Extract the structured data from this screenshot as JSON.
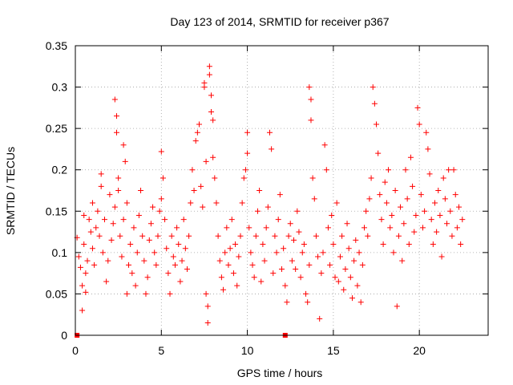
{
  "chart_data": {
    "type": "scatter",
    "title": "Day 123 of 2014, SRMTID for receiver p367",
    "xlabel": "GPS time / hours",
    "ylabel": "SRMTID / TECUs",
    "xlim": [
      0,
      24
    ],
    "ylim": [
      0,
      0.35
    ],
    "xticks": [
      0,
      5,
      10,
      15,
      20
    ],
    "xtick_labels": [
      "0",
      "5",
      "10",
      "15",
      "20"
    ],
    "yticks": [
      0,
      0.05,
      0.1,
      0.15,
      0.2,
      0.25,
      0.3,
      0.35
    ],
    "ytick_labels": [
      "0",
      "0.05",
      "0.1",
      "0.15",
      "0.2",
      "0.25",
      "0.3",
      "0.35"
    ],
    "grid": true,
    "marker": "+",
    "color": "#ff0000",
    "zero_markers": [
      {
        "x": 0.1,
        "y": 0
      },
      {
        "x": 12.2,
        "y": 0
      }
    ],
    "series": [
      {
        "name": "SRMTID",
        "points": [
          [
            0.1,
            0.118
          ],
          [
            0.2,
            0.095
          ],
          [
            0.3,
            0.082
          ],
          [
            0.4,
            0.06
          ],
          [
            0.4,
            0.03
          ],
          [
            0.5,
            0.145
          ],
          [
            0.5,
            0.11
          ],
          [
            0.6,
            0.075
          ],
          [
            0.6,
            0.052
          ],
          [
            0.7,
            0.09
          ],
          [
            0.8,
            0.14
          ],
          [
            0.9,
            0.125
          ],
          [
            1.0,
            0.105
          ],
          [
            1.0,
            0.16
          ],
          [
            1.1,
            0.085
          ],
          [
            1.2,
            0.13
          ],
          [
            1.3,
            0.15
          ],
          [
            1.4,
            0.12
          ],
          [
            1.5,
            0.18
          ],
          [
            1.5,
            0.195
          ],
          [
            1.6,
            0.1
          ],
          [
            1.7,
            0.14
          ],
          [
            1.8,
            0.065
          ],
          [
            1.9,
            0.09
          ],
          [
            2.0,
            0.17
          ],
          [
            2.1,
            0.115
          ],
          [
            2.2,
            0.135
          ],
          [
            2.3,
            0.155
          ],
          [
            2.3,
            0.285
          ],
          [
            2.4,
            0.265
          ],
          [
            2.4,
            0.245
          ],
          [
            2.5,
            0.19
          ],
          [
            2.5,
            0.175
          ],
          [
            2.6,
            0.12
          ],
          [
            2.7,
            0.095
          ],
          [
            2.8,
            0.14
          ],
          [
            2.8,
            0.23
          ],
          [
            2.9,
            0.21
          ],
          [
            3.0,
            0.16
          ],
          [
            3.0,
            0.05
          ],
          [
            3.1,
            0.085
          ],
          [
            3.2,
            0.11
          ],
          [
            3.3,
            0.075
          ],
          [
            3.4,
            0.13
          ],
          [
            3.5,
            0.06
          ],
          [
            3.6,
            0.1
          ],
          [
            3.7,
            0.145
          ],
          [
            3.8,
            0.175
          ],
          [
            3.9,
            0.12
          ],
          [
            4.0,
            0.09
          ],
          [
            4.1,
            0.05
          ],
          [
            4.2,
            0.07
          ],
          [
            4.3,
            0.115
          ],
          [
            4.4,
            0.135
          ],
          [
            4.5,
            0.155
          ],
          [
            4.6,
            0.1
          ],
          [
            4.7,
            0.085
          ],
          [
            4.8,
            0.12
          ],
          [
            4.9,
            0.15
          ],
          [
            5.0,
            0.165
          ],
          [
            5.0,
            0.222
          ],
          [
            5.1,
            0.19
          ],
          [
            5.2,
            0.14
          ],
          [
            5.3,
            0.105
          ],
          [
            5.4,
            0.075
          ],
          [
            5.5,
            0.05
          ],
          [
            5.6,
            0.12
          ],
          [
            5.7,
            0.095
          ],
          [
            5.8,
            0.085
          ],
          [
            5.9,
            0.13
          ],
          [
            6.0,
            0.11
          ],
          [
            6.1,
            0.065
          ],
          [
            6.2,
            0.09
          ],
          [
            6.3,
            0.14
          ],
          [
            6.4,
            0.105
          ],
          [
            6.5,
            0.08
          ],
          [
            6.6,
            0.12
          ],
          [
            6.7,
            0.16
          ],
          [
            6.8,
            0.2
          ],
          [
            6.9,
            0.175
          ],
          [
            7.0,
            0.235
          ],
          [
            7.1,
            0.245
          ],
          [
            7.2,
            0.255
          ],
          [
            7.3,
            0.18
          ],
          [
            7.4,
            0.155
          ],
          [
            7.5,
            0.305
          ],
          [
            7.5,
            0.3
          ],
          [
            7.6,
            0.21
          ],
          [
            7.6,
            0.05
          ],
          [
            7.7,
            0.035
          ],
          [
            7.7,
            0.015
          ],
          [
            7.8,
            0.325
          ],
          [
            7.8,
            0.315
          ],
          [
            7.9,
            0.29
          ],
          [
            7.9,
            0.27
          ],
          [
            8.0,
            0.26
          ],
          [
            8.0,
            0.215
          ],
          [
            8.1,
            0.19
          ],
          [
            8.2,
            0.16
          ],
          [
            8.3,
            0.12
          ],
          [
            8.4,
            0.09
          ],
          [
            8.5,
            0.07
          ],
          [
            8.6,
            0.055
          ],
          [
            8.7,
            0.1
          ],
          [
            8.8,
            0.13
          ],
          [
            8.9,
            0.085
          ],
          [
            9.0,
            0.105
          ],
          [
            9.1,
            0.14
          ],
          [
            9.2,
            0.075
          ],
          [
            9.3,
            0.11
          ],
          [
            9.4,
            0.06
          ],
          [
            9.5,
            0.095
          ],
          [
            9.6,
            0.12
          ],
          [
            9.7,
            0.16
          ],
          [
            9.8,
            0.19
          ],
          [
            9.9,
            0.2
          ],
          [
            10.0,
            0.245
          ],
          [
            10.0,
            0.22
          ],
          [
            10.1,
            0.13
          ],
          [
            10.2,
            0.1
          ],
          [
            10.3,
            0.085
          ],
          [
            10.4,
            0.07
          ],
          [
            10.5,
            0.12
          ],
          [
            10.6,
            0.15
          ],
          [
            10.7,
            0.175
          ],
          [
            10.8,
            0.065
          ],
          [
            10.9,
            0.11
          ],
          [
            11.0,
            0.09
          ],
          [
            11.1,
            0.13
          ],
          [
            11.2,
            0.155
          ],
          [
            11.3,
            0.245
          ],
          [
            11.4,
            0.225
          ],
          [
            11.5,
            0.075
          ],
          [
            11.6,
            0.12
          ],
          [
            11.7,
            0.1
          ],
          [
            11.8,
            0.14
          ],
          [
            11.9,
            0.17
          ],
          [
            12.0,
            0.08
          ],
          [
            12.1,
            0.105
          ],
          [
            12.2,
            0.06
          ],
          [
            12.3,
            0.04
          ],
          [
            12.4,
            0.12
          ],
          [
            12.5,
            0.135
          ],
          [
            12.6,
            0.09
          ],
          [
            12.7,
            0.115
          ],
          [
            12.8,
            0.08
          ],
          [
            12.9,
            0.15
          ],
          [
            13.0,
            0.125
          ],
          [
            13.1,
            0.07
          ],
          [
            13.2,
            0.1
          ],
          [
            13.3,
            0.11
          ],
          [
            13.4,
            0.05
          ],
          [
            13.5,
            0.04
          ],
          [
            13.6,
            0.085
          ],
          [
            13.6,
            0.3
          ],
          [
            13.7,
            0.285
          ],
          [
            13.7,
            0.26
          ],
          [
            13.8,
            0.19
          ],
          [
            13.9,
            0.165
          ],
          [
            14.0,
            0.12
          ],
          [
            14.1,
            0.095
          ],
          [
            14.2,
            0.02
          ],
          [
            14.3,
            0.075
          ],
          [
            14.4,
            0.1
          ],
          [
            14.5,
            0.23
          ],
          [
            14.6,
            0.2
          ],
          [
            14.7,
            0.13
          ],
          [
            14.8,
            0.085
          ],
          [
            14.9,
            0.145
          ],
          [
            15.0,
            0.11
          ],
          [
            15.1,
            0.07
          ],
          [
            15.2,
            0.16
          ],
          [
            15.3,
            0.065
          ],
          [
            15.4,
            0.095
          ],
          [
            15.5,
            0.12
          ],
          [
            15.6,
            0.055
          ],
          [
            15.7,
            0.08
          ],
          [
            15.8,
            0.135
          ],
          [
            15.9,
            0.105
          ],
          [
            16.0,
            0.07
          ],
          [
            16.1,
            0.045
          ],
          [
            16.2,
            0.09
          ],
          [
            16.3,
            0.115
          ],
          [
            16.4,
            0.06
          ],
          [
            16.5,
            0.1
          ],
          [
            16.6,
            0.04
          ],
          [
            16.7,
            0.085
          ],
          [
            16.8,
            0.13
          ],
          [
            16.9,
            0.15
          ],
          [
            17.0,
            0.12
          ],
          [
            17.1,
            0.165
          ],
          [
            17.2,
            0.19
          ],
          [
            17.3,
            0.3
          ],
          [
            17.4,
            0.28
          ],
          [
            17.5,
            0.255
          ],
          [
            17.6,
            0.22
          ],
          [
            17.7,
            0.17
          ],
          [
            17.8,
            0.14
          ],
          [
            17.9,
            0.11
          ],
          [
            18.0,
            0.185
          ],
          [
            18.1,
            0.16
          ],
          [
            18.2,
            0.2
          ],
          [
            18.3,
            0.13
          ],
          [
            18.4,
            0.145
          ],
          [
            18.5,
            0.1
          ],
          [
            18.6,
            0.175
          ],
          [
            18.7,
            0.035
          ],
          [
            18.8,
            0.12
          ],
          [
            18.9,
            0.155
          ],
          [
            19.0,
            0.09
          ],
          [
            19.1,
            0.135
          ],
          [
            19.2,
            0.2
          ],
          [
            19.3,
            0.165
          ],
          [
            19.4,
            0.11
          ],
          [
            19.5,
            0.215
          ],
          [
            19.6,
            0.18
          ],
          [
            19.7,
            0.125
          ],
          [
            19.8,
            0.145
          ],
          [
            19.9,
            0.275
          ],
          [
            20.0,
            0.255
          ],
          [
            20.1,
            0.17
          ],
          [
            20.2,
            0.13
          ],
          [
            20.3,
            0.15
          ],
          [
            20.4,
            0.245
          ],
          [
            20.5,
            0.225
          ],
          [
            20.6,
            0.195
          ],
          [
            20.7,
            0.14
          ],
          [
            20.8,
            0.11
          ],
          [
            20.9,
            0.16
          ],
          [
            21.0,
            0.125
          ],
          [
            21.1,
            0.175
          ],
          [
            21.2,
            0.145
          ],
          [
            21.3,
            0.095
          ],
          [
            21.4,
            0.19
          ],
          [
            21.5,
            0.165
          ],
          [
            21.6,
            0.135
          ],
          [
            21.7,
            0.2
          ],
          [
            21.8,
            0.15
          ],
          [
            21.9,
            0.12
          ],
          [
            22.0,
            0.2
          ],
          [
            22.1,
            0.17
          ],
          [
            22.2,
            0.13
          ],
          [
            22.3,
            0.155
          ],
          [
            22.4,
            0.11
          ],
          [
            22.5,
            0.14
          ]
        ]
      }
    ]
  }
}
